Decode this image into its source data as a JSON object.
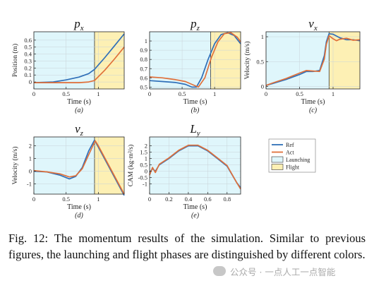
{
  "colors": {
    "ref": "#2f6fb8",
    "act": "#e0703a",
    "launch_bg": "#dff6fb",
    "flight_bg": "#fdf0b4",
    "phase_border": "#333333"
  },
  "legend": {
    "items": [
      "Ref",
      "Act",
      "Launching",
      "Flight"
    ]
  },
  "caption": "Fig. 12: The momentum results of the simulation. Similar to previous figures, the launching and flight phases are distinguished by different colors.",
  "watermark": "公众号 · 一点人工一点智能",
  "chart_data": [
    {
      "type": "line",
      "title": "p_x",
      "subtitle": "(a)",
      "xlabel": "Time (s)",
      "ylabel": "Position (m)",
      "xlim": [
        0,
        1.4
      ],
      "ylim": [
        -0.1,
        0.72
      ],
      "launch_end": 0.94,
      "xticks": [
        0,
        0.5,
        1
      ],
      "yticks": [
        0,
        0.1,
        0.2,
        0.3,
        0.4,
        0.5,
        0.6
      ],
      "series": [
        {
          "name": "Ref",
          "x": [
            0,
            0.3,
            0.5,
            0.7,
            0.85,
            0.94,
            1.1,
            1.25,
            1.4
          ],
          "y": [
            -0.01,
            0.0,
            0.03,
            0.07,
            0.12,
            0.18,
            0.35,
            0.52,
            0.69
          ]
        },
        {
          "name": "Act",
          "x": [
            0,
            0.3,
            0.5,
            0.7,
            0.85,
            0.94,
            1.1,
            1.25,
            1.4
          ],
          "y": [
            -0.01,
            -0.01,
            -0.01,
            -0.01,
            0.0,
            0.02,
            0.17,
            0.33,
            0.5
          ]
        }
      ]
    },
    {
      "type": "line",
      "title": "p_z",
      "subtitle": "(b)",
      "xlabel": "Time (s)",
      "ylabel": "",
      "xlim": [
        0,
        1.4
      ],
      "ylim": [
        0.48,
        1.1
      ],
      "launch_end": 0.94,
      "xticks": [
        0,
        0.5,
        1
      ],
      "yticks": [
        0.5,
        0.6,
        0.7,
        0.8,
        0.9,
        1
      ],
      "series": [
        {
          "name": "Ref",
          "x": [
            0,
            0.2,
            0.4,
            0.55,
            0.65,
            0.72,
            0.8,
            0.9,
            1.0,
            1.1,
            1.2,
            1.3,
            1.4
          ],
          "y": [
            0.57,
            0.56,
            0.55,
            0.53,
            0.5,
            0.5,
            0.6,
            0.8,
            0.97,
            1.07,
            1.09,
            1.06,
            0.97
          ]
        },
        {
          "name": "Act",
          "x": [
            0,
            0.2,
            0.4,
            0.55,
            0.65,
            0.75,
            0.85,
            0.95,
            1.05,
            1.15,
            1.25,
            1.35,
            1.4
          ],
          "y": [
            0.61,
            0.6,
            0.58,
            0.56,
            0.53,
            0.5,
            0.6,
            0.82,
            0.99,
            1.08,
            1.09,
            1.04,
            0.99
          ]
        }
      ]
    },
    {
      "type": "line",
      "title": "v_x",
      "subtitle": "(c)",
      "xlabel": "Time (s)",
      "ylabel": "Velocity (m/s)",
      "xlim": [
        0,
        1.4
      ],
      "ylim": [
        -0.05,
        1.1
      ],
      "launch_end": 0.94,
      "xticks": [
        0,
        0.5,
        1
      ],
      "yticks": [
        0,
        0.5,
        1
      ],
      "series": [
        {
          "name": "Ref",
          "x": [
            0,
            0.1,
            0.3,
            0.5,
            0.6,
            0.7,
            0.8,
            0.87,
            0.9,
            0.94,
            1.0,
            1.1,
            1.2,
            1.3,
            1.4
          ],
          "y": [
            0.02,
            0.06,
            0.14,
            0.24,
            0.3,
            0.3,
            0.32,
            0.62,
            0.9,
            1.06,
            1.05,
            0.98,
            0.94,
            0.94,
            0.92
          ]
        },
        {
          "name": "Act",
          "x": [
            0,
            0.1,
            0.3,
            0.5,
            0.6,
            0.7,
            0.8,
            0.87,
            0.9,
            0.94,
            1.0,
            1.05,
            1.1,
            1.2,
            1.3,
            1.4
          ],
          "y": [
            0.02,
            0.07,
            0.16,
            0.27,
            0.32,
            0.31,
            0.3,
            0.55,
            0.85,
            1.02,
            0.96,
            0.92,
            0.95,
            0.97,
            0.93,
            0.94
          ]
        }
      ]
    },
    {
      "type": "line",
      "title": "v_z",
      "subtitle": "(d)",
      "xlabel": "Time (s)",
      "ylabel": "Velocity (m/s)",
      "xlim": [
        0,
        1.4
      ],
      "ylim": [
        -1.8,
        2.7
      ],
      "launch_end": 0.94,
      "xticks": [
        0,
        0.5,
        1
      ],
      "yticks": [
        -1,
        0,
        1,
        2
      ],
      "series": [
        {
          "name": "Ref",
          "x": [
            0,
            0.2,
            0.4,
            0.55,
            0.65,
            0.75,
            0.85,
            0.94,
            1.0,
            1.2,
            1.4
          ],
          "y": [
            0.0,
            -0.05,
            -0.3,
            -0.6,
            -0.4,
            0.3,
            1.6,
            2.45,
            1.9,
            0.0,
            -1.9
          ]
        },
        {
          "name": "Act",
          "x": [
            0,
            0.2,
            0.4,
            0.55,
            0.65,
            0.75,
            0.85,
            0.95,
            1.0,
            1.2,
            1.4
          ],
          "y": [
            0.05,
            -0.05,
            -0.2,
            -0.45,
            -0.35,
            0.2,
            1.3,
            2.4,
            2.0,
            0.1,
            -1.8
          ]
        }
      ]
    },
    {
      "type": "line",
      "title": "L_y",
      "subtitle": "(e)",
      "xlabel": "Time (s)",
      "ylabel": "CAM (kg·m²/s)",
      "xlim": [
        0,
        0.94
      ],
      "ylim": [
        -1.8,
        2.7
      ],
      "launch_end": null,
      "xticks": [
        0,
        0.2,
        0.4,
        0.6,
        0.8
      ],
      "yticks": [
        -1,
        -0.5,
        0,
        0.5,
        1,
        1.5,
        2
      ],
      "series": [
        {
          "name": "Ref",
          "x": [
            0,
            0.03,
            0.06,
            0.1,
            0.2,
            0.3,
            0.4,
            0.5,
            0.6,
            0.7,
            0.8,
            0.9,
            0.94
          ],
          "y": [
            -0.1,
            0.2,
            0.0,
            0.5,
            1.0,
            1.6,
            2.0,
            2.0,
            1.6,
            1.0,
            0.4,
            -0.9,
            -1.3
          ]
        },
        {
          "name": "Act",
          "x": [
            0,
            0.03,
            0.06,
            0.1,
            0.2,
            0.3,
            0.4,
            0.5,
            0.6,
            0.7,
            0.8,
            0.9,
            0.94
          ],
          "y": [
            -0.3,
            0.3,
            -0.1,
            0.55,
            1.05,
            1.65,
            2.05,
            2.05,
            1.65,
            1.05,
            0.45,
            -0.9,
            -1.4
          ]
        }
      ]
    }
  ]
}
